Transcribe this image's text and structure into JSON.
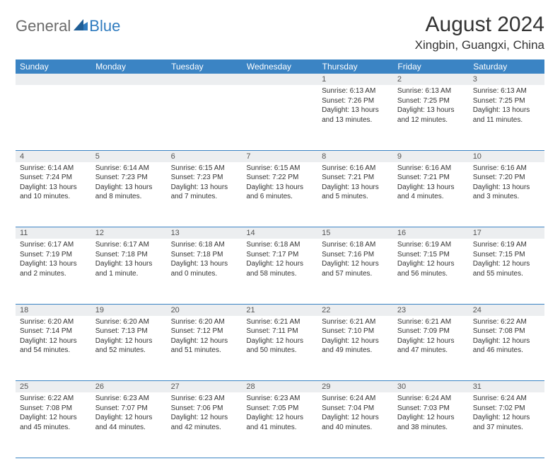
{
  "brand": {
    "part1": "General",
    "part2": "Blue"
  },
  "title": "August 2024",
  "location": "Xingbin, Guangxi, China",
  "colors": {
    "header_bg": "#3b84c4",
    "header_text": "#ffffff",
    "daynum_bg": "#eceef0",
    "border": "#3b84c4",
    "logo_gray": "#6a6a6a",
    "logo_blue": "#2f7bbf"
  },
  "weekdays": [
    "Sunday",
    "Monday",
    "Tuesday",
    "Wednesday",
    "Thursday",
    "Friday",
    "Saturday"
  ],
  "weeks": [
    [
      null,
      null,
      null,
      null,
      {
        "n": "1",
        "sr": "Sunrise: 6:13 AM",
        "ss": "Sunset: 7:26 PM",
        "dl1": "Daylight: 13 hours",
        "dl2": "and 13 minutes."
      },
      {
        "n": "2",
        "sr": "Sunrise: 6:13 AM",
        "ss": "Sunset: 7:25 PM",
        "dl1": "Daylight: 13 hours",
        "dl2": "and 12 minutes."
      },
      {
        "n": "3",
        "sr": "Sunrise: 6:13 AM",
        "ss": "Sunset: 7:25 PM",
        "dl1": "Daylight: 13 hours",
        "dl2": "and 11 minutes."
      }
    ],
    [
      {
        "n": "4",
        "sr": "Sunrise: 6:14 AM",
        "ss": "Sunset: 7:24 PM",
        "dl1": "Daylight: 13 hours",
        "dl2": "and 10 minutes."
      },
      {
        "n": "5",
        "sr": "Sunrise: 6:14 AM",
        "ss": "Sunset: 7:23 PM",
        "dl1": "Daylight: 13 hours",
        "dl2": "and 8 minutes."
      },
      {
        "n": "6",
        "sr": "Sunrise: 6:15 AM",
        "ss": "Sunset: 7:23 PM",
        "dl1": "Daylight: 13 hours",
        "dl2": "and 7 minutes."
      },
      {
        "n": "7",
        "sr": "Sunrise: 6:15 AM",
        "ss": "Sunset: 7:22 PM",
        "dl1": "Daylight: 13 hours",
        "dl2": "and 6 minutes."
      },
      {
        "n": "8",
        "sr": "Sunrise: 6:16 AM",
        "ss": "Sunset: 7:21 PM",
        "dl1": "Daylight: 13 hours",
        "dl2": "and 5 minutes."
      },
      {
        "n": "9",
        "sr": "Sunrise: 6:16 AM",
        "ss": "Sunset: 7:21 PM",
        "dl1": "Daylight: 13 hours",
        "dl2": "and 4 minutes."
      },
      {
        "n": "10",
        "sr": "Sunrise: 6:16 AM",
        "ss": "Sunset: 7:20 PM",
        "dl1": "Daylight: 13 hours",
        "dl2": "and 3 minutes."
      }
    ],
    [
      {
        "n": "11",
        "sr": "Sunrise: 6:17 AM",
        "ss": "Sunset: 7:19 PM",
        "dl1": "Daylight: 13 hours",
        "dl2": "and 2 minutes."
      },
      {
        "n": "12",
        "sr": "Sunrise: 6:17 AM",
        "ss": "Sunset: 7:18 PM",
        "dl1": "Daylight: 13 hours",
        "dl2": "and 1 minute."
      },
      {
        "n": "13",
        "sr": "Sunrise: 6:18 AM",
        "ss": "Sunset: 7:18 PM",
        "dl1": "Daylight: 13 hours",
        "dl2": "and 0 minutes."
      },
      {
        "n": "14",
        "sr": "Sunrise: 6:18 AM",
        "ss": "Sunset: 7:17 PM",
        "dl1": "Daylight: 12 hours",
        "dl2": "and 58 minutes."
      },
      {
        "n": "15",
        "sr": "Sunrise: 6:18 AM",
        "ss": "Sunset: 7:16 PM",
        "dl1": "Daylight: 12 hours",
        "dl2": "and 57 minutes."
      },
      {
        "n": "16",
        "sr": "Sunrise: 6:19 AM",
        "ss": "Sunset: 7:15 PM",
        "dl1": "Daylight: 12 hours",
        "dl2": "and 56 minutes."
      },
      {
        "n": "17",
        "sr": "Sunrise: 6:19 AM",
        "ss": "Sunset: 7:15 PM",
        "dl1": "Daylight: 12 hours",
        "dl2": "and 55 minutes."
      }
    ],
    [
      {
        "n": "18",
        "sr": "Sunrise: 6:20 AM",
        "ss": "Sunset: 7:14 PM",
        "dl1": "Daylight: 12 hours",
        "dl2": "and 54 minutes."
      },
      {
        "n": "19",
        "sr": "Sunrise: 6:20 AM",
        "ss": "Sunset: 7:13 PM",
        "dl1": "Daylight: 12 hours",
        "dl2": "and 52 minutes."
      },
      {
        "n": "20",
        "sr": "Sunrise: 6:20 AM",
        "ss": "Sunset: 7:12 PM",
        "dl1": "Daylight: 12 hours",
        "dl2": "and 51 minutes."
      },
      {
        "n": "21",
        "sr": "Sunrise: 6:21 AM",
        "ss": "Sunset: 7:11 PM",
        "dl1": "Daylight: 12 hours",
        "dl2": "and 50 minutes."
      },
      {
        "n": "22",
        "sr": "Sunrise: 6:21 AM",
        "ss": "Sunset: 7:10 PM",
        "dl1": "Daylight: 12 hours",
        "dl2": "and 49 minutes."
      },
      {
        "n": "23",
        "sr": "Sunrise: 6:21 AM",
        "ss": "Sunset: 7:09 PM",
        "dl1": "Daylight: 12 hours",
        "dl2": "and 47 minutes."
      },
      {
        "n": "24",
        "sr": "Sunrise: 6:22 AM",
        "ss": "Sunset: 7:08 PM",
        "dl1": "Daylight: 12 hours",
        "dl2": "and 46 minutes."
      }
    ],
    [
      {
        "n": "25",
        "sr": "Sunrise: 6:22 AM",
        "ss": "Sunset: 7:08 PM",
        "dl1": "Daylight: 12 hours",
        "dl2": "and 45 minutes."
      },
      {
        "n": "26",
        "sr": "Sunrise: 6:23 AM",
        "ss": "Sunset: 7:07 PM",
        "dl1": "Daylight: 12 hours",
        "dl2": "and 44 minutes."
      },
      {
        "n": "27",
        "sr": "Sunrise: 6:23 AM",
        "ss": "Sunset: 7:06 PM",
        "dl1": "Daylight: 12 hours",
        "dl2": "and 42 minutes."
      },
      {
        "n": "28",
        "sr": "Sunrise: 6:23 AM",
        "ss": "Sunset: 7:05 PM",
        "dl1": "Daylight: 12 hours",
        "dl2": "and 41 minutes."
      },
      {
        "n": "29",
        "sr": "Sunrise: 6:24 AM",
        "ss": "Sunset: 7:04 PM",
        "dl1": "Daylight: 12 hours",
        "dl2": "and 40 minutes."
      },
      {
        "n": "30",
        "sr": "Sunrise: 6:24 AM",
        "ss": "Sunset: 7:03 PM",
        "dl1": "Daylight: 12 hours",
        "dl2": "and 38 minutes."
      },
      {
        "n": "31",
        "sr": "Sunrise: 6:24 AM",
        "ss": "Sunset: 7:02 PM",
        "dl1": "Daylight: 12 hours",
        "dl2": "and 37 minutes."
      }
    ]
  ]
}
